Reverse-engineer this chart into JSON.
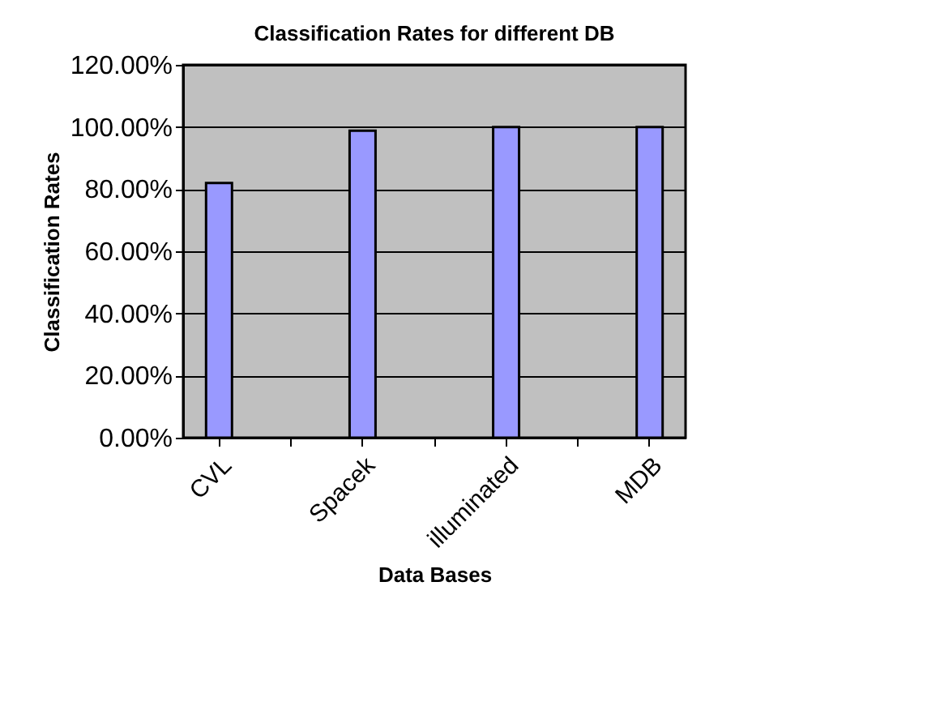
{
  "chart_data": {
    "type": "bar",
    "title": "Classification Rates for different DB",
    "xlabel": "Data Bases",
    "ylabel": "Classification Rates",
    "categories": [
      "CVL",
      null,
      "Spacek",
      null,
      "illuminated",
      null,
      "MDB"
    ],
    "values": [
      82,
      null,
      98.8,
      null,
      100,
      null,
      100
    ],
    "color": "#9999ff",
    "ylim": [
      0,
      120
    ],
    "yticks": [
      {
        "value": 0,
        "label": "0.00%"
      },
      {
        "value": 20,
        "label": "20.00%"
      },
      {
        "value": 40,
        "label": "40.00%"
      },
      {
        "value": 60,
        "label": "60.00%"
      },
      {
        "value": 80,
        "label": "80.00%"
      },
      {
        "value": 100,
        "label": "100.00%"
      },
      {
        "value": 120,
        "label": "120.00%"
      }
    ],
    "grid": "y"
  }
}
